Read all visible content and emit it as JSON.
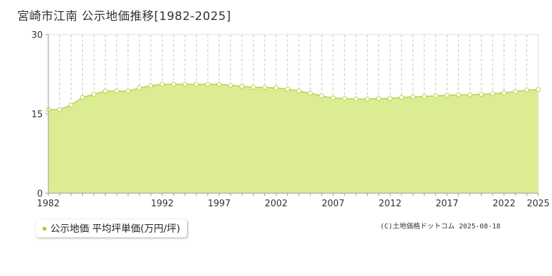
{
  "title": "宮崎市江南 公示地価推移[1982-2025]",
  "legend": {
    "label": "公示地価 平均坪単価(万円/坪)"
  },
  "copyright": "(C)土地価格ドットコム 2025-08-18",
  "colors": {
    "fill": "#dcec93",
    "line": "#b5d44a",
    "marker_fill": "#ffffff",
    "grid": "#c8c8c8",
    "axis": "#999999",
    "legend_swatch": "#a8d030"
  },
  "chart_data": {
    "type": "area",
    "title": "",
    "xlabel": "",
    "ylabel": "",
    "ylim": [
      0,
      30
    ],
    "yticks": [
      "0",
      "15",
      "30"
    ],
    "xlim": [
      1982,
      2025
    ],
    "xticks": [
      "1982",
      "1992",
      "1997",
      "2002",
      "2007",
      "2012",
      "2017",
      "2022",
      "2025"
    ],
    "grid": "vertical dashed per year; horizontal dashed at 15",
    "series": [
      {
        "x": [
          1982,
          1983,
          1984,
          1985,
          1986,
          1987,
          1988,
          1989,
          1990,
          1991,
          1992,
          1993,
          1994,
          1995,
          1996,
          1997,
          1998,
          1999,
          2000,
          2001,
          2002,
          2003,
          2004,
          2005,
          2006,
          2007,
          2008,
          2009,
          2010,
          2011,
          2012,
          2013,
          2014,
          2015,
          2016,
          2017,
          2018,
          2019,
          2020,
          2021,
          2022,
          2023,
          2024,
          2025
        ],
        "values": [
          15.8,
          15.8,
          16.7,
          18.1,
          18.7,
          19.3,
          19.3,
          19.3,
          19.9,
          20.3,
          20.6,
          20.6,
          20.6,
          20.6,
          20.6,
          20.6,
          20.4,
          20.2,
          20.0,
          20.0,
          19.9,
          19.7,
          19.3,
          18.9,
          18.4,
          18.0,
          17.9,
          17.8,
          17.8,
          17.9,
          17.9,
          18.1,
          18.2,
          18.3,
          18.4,
          18.5,
          18.6,
          18.6,
          18.7,
          18.8,
          19.0,
          19.2,
          19.5,
          19.6
        ]
      }
    ]
  }
}
